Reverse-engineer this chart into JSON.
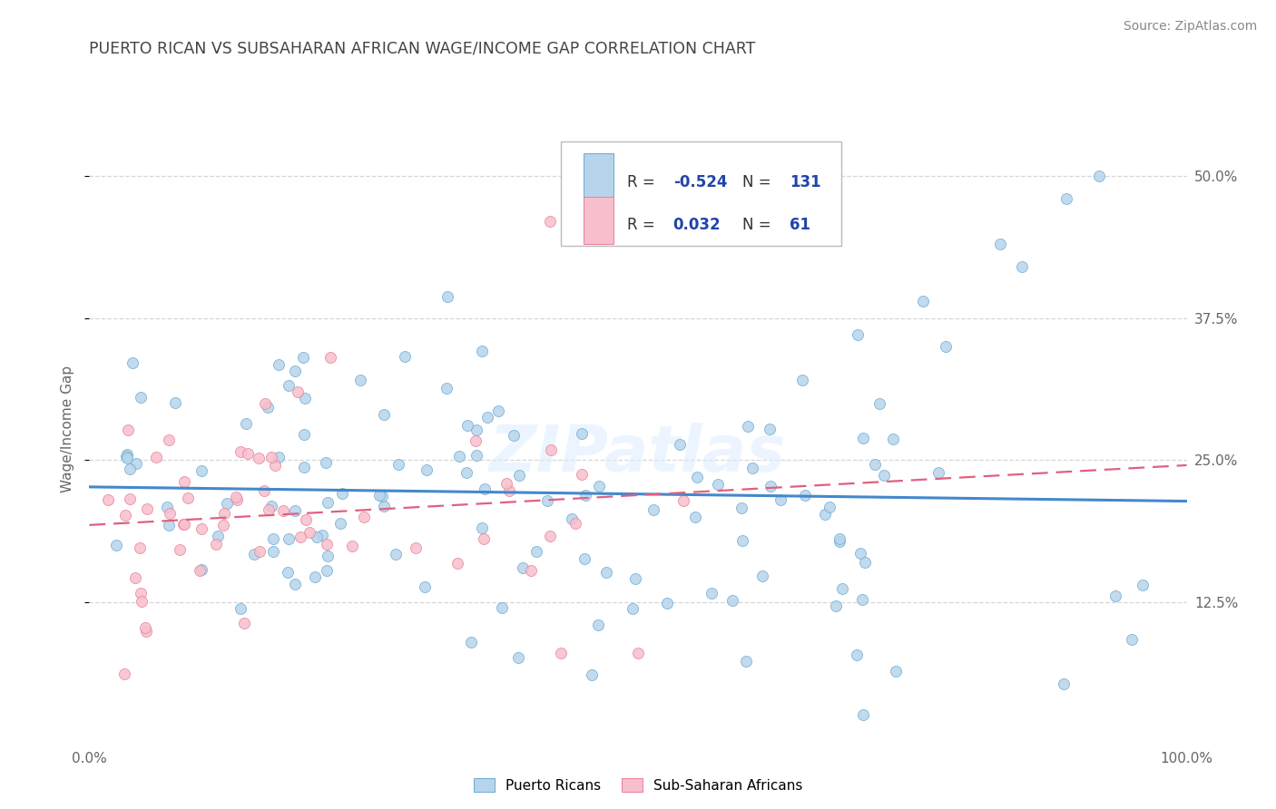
{
  "title": "PUERTO RICAN VS SUBSAHARAN AFRICAN WAGE/INCOME GAP CORRELATION CHART",
  "source": "Source: ZipAtlas.com",
  "ylabel": "Wage/Income Gap",
  "xticklabels": [
    "0.0%",
    "100.0%"
  ],
  "yticklabels": [
    "12.5%",
    "25.0%",
    "37.5%",
    "50.0%"
  ],
  "ytick_vals": [
    0.125,
    0.25,
    0.375,
    0.5
  ],
  "xlim": [
    0.0,
    1.0
  ],
  "ylim": [
    0.0,
    0.555
  ],
  "legend_labels": [
    "Puerto Ricans",
    "Sub-Saharan Africans"
  ],
  "legend_r_values": [
    "-0.524",
    "0.032"
  ],
  "legend_n_values": [
    "131",
    "61"
  ],
  "blue_fill": "#b8d4ea",
  "blue_edge": "#6aaad4",
  "pink_fill": "#f7bfcc",
  "pink_edge": "#e8809a",
  "blue_line": "#4488cc",
  "pink_line": "#e06080",
  "title_color": "#444444",
  "tick_color": "#666666",
  "legend_value_color": "#2244aa",
  "grid_color": "#cccccc",
  "watermark": "ZIPatlas",
  "bg_color": "#ffffff"
}
